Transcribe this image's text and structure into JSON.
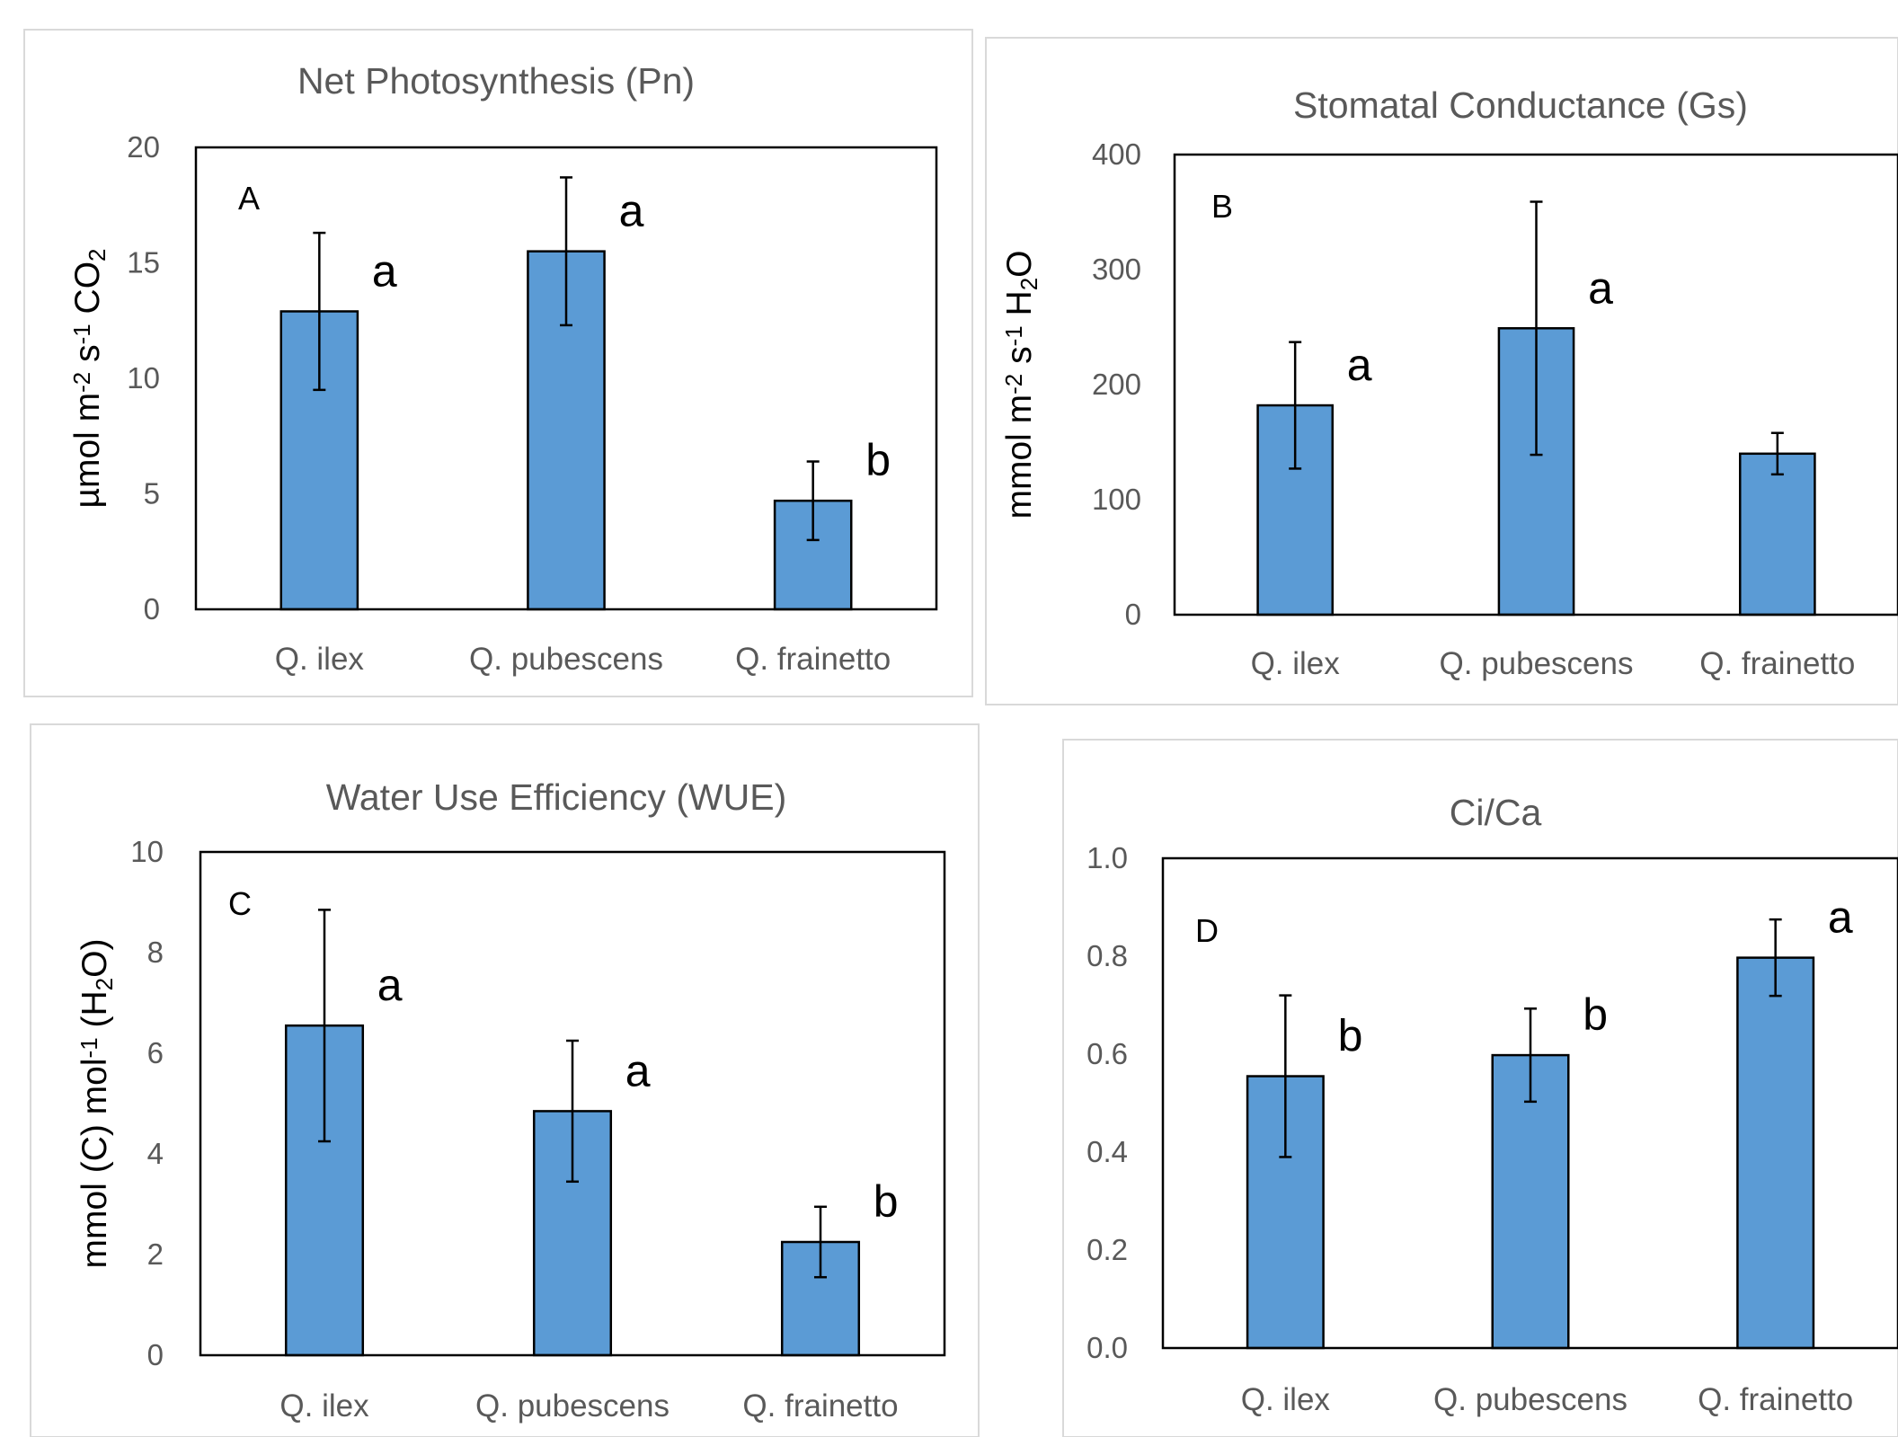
{
  "chart_data": [
    {
      "id": "A",
      "type": "bar",
      "title": "Net Photosynthesis  (Pn)",
      "panel_letter": "A",
      "ylabel": {
        "parts": [
          {
            "t": "µmol m"
          },
          {
            "t": "-2",
            "sup": true
          },
          {
            "t": " s"
          },
          {
            "t": "-1",
            "sup": true
          },
          {
            "t": " CO"
          },
          {
            "t": "2",
            "sub": true
          }
        ]
      },
      "categories": [
        "Q. ilex",
        "Q. pubescens",
        "Q. frainetto"
      ],
      "values": [
        12.9,
        15.5,
        4.7
      ],
      "error": [
        3.4,
        3.2,
        1.7
      ],
      "significance": [
        "a",
        "a",
        "b"
      ],
      "ylim": [
        0,
        20
      ],
      "yticks": [
        0,
        5,
        10,
        15,
        20
      ],
      "ytick_labels": [
        "0",
        "5",
        "10",
        "15",
        "20"
      ]
    },
    {
      "id": "B",
      "type": "bar",
      "title": "Stomatal Conductance (Gs)",
      "panel_letter": "B",
      "ylabel": {
        "parts": [
          {
            "t": "mmol m"
          },
          {
            "t": "-2",
            "sup": true
          },
          {
            "t": " s"
          },
          {
            "t": "-1",
            "sup": true
          },
          {
            "t": " H"
          },
          {
            "t": "2",
            "sub": true
          },
          {
            "t": "O"
          }
        ]
      },
      "categories": [
        "Q. ilex",
        "Q. pubescens",
        "Q. frainetto"
      ],
      "values": [
        182,
        249,
        140
      ],
      "error": [
        55,
        110,
        18
      ],
      "significance": [
        "a",
        "a",
        ""
      ],
      "ylim": [
        0,
        400
      ],
      "yticks": [
        0,
        100,
        200,
        300,
        400
      ],
      "ytick_labels": [
        "0",
        "100",
        "200",
        "300",
        "400"
      ]
    },
    {
      "id": "C",
      "type": "bar",
      "title": "Water Use Efficiency (WUE)",
      "panel_letter": "C",
      "ylabel": {
        "parts": [
          {
            "t": "mmol (C) mol"
          },
          {
            "t": "-1",
            "sup": true
          },
          {
            "t": " (H"
          },
          {
            "t": "2",
            "sub": true
          },
          {
            "t": "O)"
          }
        ]
      },
      "categories": [
        "Q. ilex",
        "Q. pubescens",
        "Q. frainetto"
      ],
      "values": [
        6.55,
        4.85,
        2.25
      ],
      "error": [
        2.3,
        1.4,
        0.7
      ],
      "significance": [
        "a",
        "a",
        "b"
      ],
      "ylim": [
        0,
        10
      ],
      "yticks": [
        0,
        2,
        4,
        6,
        8,
        10
      ],
      "ytick_labels": [
        "0",
        "2",
        "4",
        "6",
        "8",
        "10"
      ]
    },
    {
      "id": "D",
      "type": "bar",
      "title": "Ci/Ca",
      "panel_letter": "D",
      "ylabel": {
        "parts": []
      },
      "categories": [
        "Q. ilex",
        "Q. pubescens",
        "Q. frainetto"
      ],
      "values": [
        0.555,
        0.598,
        0.797
      ],
      "error": [
        0.165,
        0.095,
        0.078
      ],
      "significance": [
        "b",
        "b",
        "a"
      ],
      "ylim": [
        0,
        1.0
      ],
      "yticks": [
        0,
        0.2,
        0.4,
        0.6,
        0.8,
        1.0
      ],
      "ytick_labels": [
        "0.0",
        "0.2",
        "0.4",
        "0.6",
        "0.8",
        "1.0"
      ]
    }
  ]
}
